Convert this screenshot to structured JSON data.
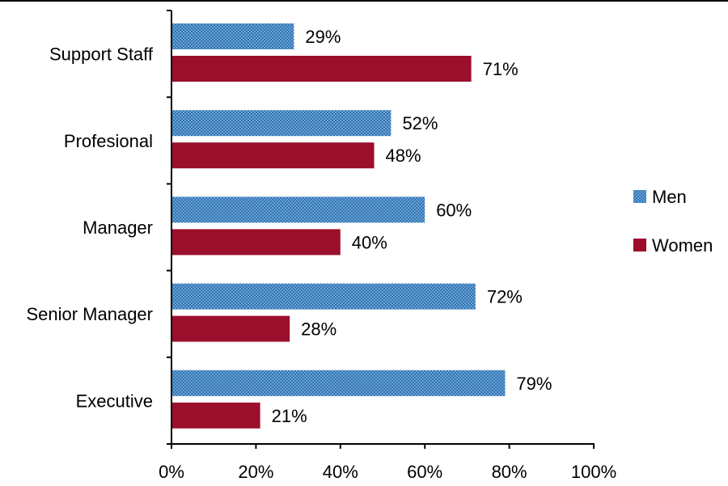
{
  "chart_data": {
    "type": "bar",
    "orientation": "horizontal",
    "categories": [
      "Support Staff",
      "Profesional",
      "Manager",
      "Senior Manager",
      "Executive"
    ],
    "series": [
      {
        "name": "Men",
        "values": [
          29,
          52,
          60,
          72,
          79
        ],
        "labels": [
          "29%",
          "52%",
          "60%",
          "72%",
          "79%"
        ],
        "color": "#2e75b6",
        "pattern": "dotted"
      },
      {
        "name": "Women",
        "values": [
          71,
          48,
          40,
          28,
          21
        ],
        "labels": [
          "71%",
          "48%",
          "40%",
          "28%",
          "21%"
        ],
        "color": "#9b0f2c",
        "pattern": "solid"
      }
    ],
    "x_ticks": [
      "0%",
      "20%",
      "40%",
      "60%",
      "80%",
      "100%"
    ],
    "xlim": [
      0,
      100
    ],
    "grid": false,
    "legend_position": "right"
  }
}
